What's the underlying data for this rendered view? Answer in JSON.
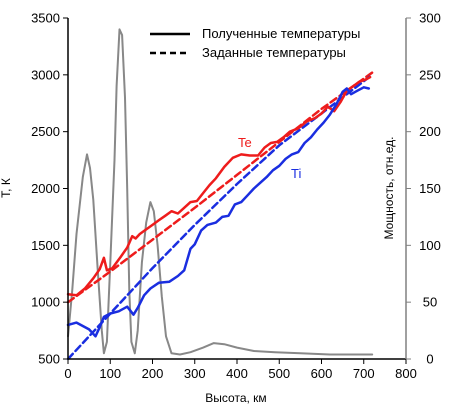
{
  "chart_data": {
    "type": "line",
    "xlabel": "Высота, км",
    "ylabel_left": "Т, К",
    "ylabel_right": "Мощность, отн.ед.",
    "xlim": [
      0,
      800
    ],
    "ylim_left": [
      500,
      3500
    ],
    "ylim_right": [
      0,
      300
    ],
    "x_ticks": [
      "0",
      "100",
      "200",
      "300",
      "400",
      "500",
      "600",
      "700",
      "800"
    ],
    "y_left_ticks": [
      "500",
      "1000",
      "1500",
      "2000",
      "2500",
      "3000",
      "3500"
    ],
    "y_right_ticks": [
      "0",
      "50",
      "100",
      "150",
      "200",
      "250",
      "300"
    ],
    "legend": {
      "position": "top-center",
      "solid_label": "Полученные температуры",
      "dashed_label": "Заданные температуры"
    },
    "colors": {
      "te": "#ee1c1c",
      "ti": "#1a2ee0",
      "power": "#888888",
      "axis": "#000000",
      "right_axis": "#808080"
    },
    "series": [
      {
        "label": "Te",
        "color": "#ee1c1c",
        "style": "solid",
        "axis": "left",
        "points": [
          [
            0,
            1070
          ],
          [
            20,
            1060
          ],
          [
            40,
            1120
          ],
          [
            60,
            1210
          ],
          [
            75,
            1290
          ],
          [
            85,
            1390
          ],
          [
            92,
            1280
          ],
          [
            105,
            1300
          ],
          [
            125,
            1400
          ],
          [
            140,
            1480
          ],
          [
            152,
            1580
          ],
          [
            160,
            1560
          ],
          [
            170,
            1600
          ],
          [
            185,
            1640
          ],
          [
            200,
            1680
          ],
          [
            215,
            1720
          ],
          [
            230,
            1760
          ],
          [
            245,
            1800
          ],
          [
            260,
            1780
          ],
          [
            275,
            1830
          ],
          [
            290,
            1880
          ],
          [
            305,
            1890
          ],
          [
            320,
            1960
          ],
          [
            335,
            2030
          ],
          [
            350,
            2090
          ],
          [
            370,
            2190
          ],
          [
            390,
            2270
          ],
          [
            410,
            2300
          ],
          [
            430,
            2290
          ],
          [
            450,
            2290
          ],
          [
            465,
            2360
          ],
          [
            480,
            2400
          ],
          [
            495,
            2410
          ],
          [
            510,
            2450
          ],
          [
            525,
            2500
          ],
          [
            545,
            2530
          ],
          [
            565,
            2590
          ],
          [
            585,
            2620
          ],
          [
            600,
            2660
          ],
          [
            615,
            2720
          ],
          [
            630,
            2680
          ],
          [
            645,
            2760
          ],
          [
            660,
            2860
          ],
          [
            675,
            2900
          ],
          [
            690,
            2940
          ],
          [
            705,
            2960
          ],
          [
            715,
            2980
          ]
        ]
      },
      {
        "label": "Ti",
        "color": "#1a2ee0",
        "style": "solid",
        "axis": "left",
        "points": [
          [
            0,
            800
          ],
          [
            20,
            820
          ],
          [
            35,
            790
          ],
          [
            50,
            760
          ],
          [
            65,
            700
          ],
          [
            75,
            780
          ],
          [
            85,
            870
          ],
          [
            100,
            900
          ],
          [
            120,
            920
          ],
          [
            140,
            960
          ],
          [
            155,
            890
          ],
          [
            165,
            950
          ],
          [
            180,
            1060
          ],
          [
            195,
            1120
          ],
          [
            215,
            1170
          ],
          [
            240,
            1180
          ],
          [
            260,
            1230
          ],
          [
            275,
            1280
          ],
          [
            290,
            1470
          ],
          [
            300,
            1510
          ],
          [
            315,
            1630
          ],
          [
            330,
            1680
          ],
          [
            350,
            1700
          ],
          [
            365,
            1750
          ],
          [
            380,
            1760
          ],
          [
            395,
            1860
          ],
          [
            410,
            1880
          ],
          [
            425,
            1940
          ],
          [
            440,
            2000
          ],
          [
            455,
            2050
          ],
          [
            470,
            2100
          ],
          [
            485,
            2160
          ],
          [
            500,
            2200
          ],
          [
            515,
            2260
          ],
          [
            530,
            2300
          ],
          [
            545,
            2320
          ],
          [
            560,
            2400
          ],
          [
            575,
            2450
          ],
          [
            590,
            2520
          ],
          [
            605,
            2580
          ],
          [
            620,
            2650
          ],
          [
            635,
            2740
          ],
          [
            650,
            2850
          ],
          [
            660,
            2880
          ],
          [
            670,
            2830
          ],
          [
            685,
            2860
          ],
          [
            700,
            2890
          ],
          [
            712,
            2880
          ]
        ]
      },
      {
        "label": "Te assigned",
        "color": "#ee1c1c",
        "style": "dashed",
        "axis": "left",
        "points": [
          [
            0,
            1000
          ],
          [
            100,
            1270
          ],
          [
            200,
            1550
          ],
          [
            300,
            1830
          ],
          [
            400,
            2120
          ],
          [
            500,
            2410
          ],
          [
            600,
            2700
          ],
          [
            720,
            3020
          ]
        ]
      },
      {
        "label": "Ti assigned",
        "color": "#1a2ee0",
        "style": "dashed",
        "axis": "left",
        "points": [
          [
            0,
            500
          ],
          [
            100,
            900
          ],
          [
            200,
            1300
          ],
          [
            300,
            1680
          ],
          [
            400,
            2040
          ],
          [
            500,
            2380
          ],
          [
            600,
            2660
          ],
          [
            720,
            3000
          ]
        ]
      },
      {
        "label": "power",
        "color": "#888888",
        "style": "solid",
        "axis": "right",
        "points": [
          [
            0,
            20
          ],
          [
            10,
            60
          ],
          [
            20,
            110
          ],
          [
            35,
            160
          ],
          [
            45,
            180
          ],
          [
            52,
            168
          ],
          [
            60,
            140
          ],
          [
            70,
            80
          ],
          [
            80,
            25
          ],
          [
            85,
            5
          ],
          [
            92,
            15
          ],
          [
            100,
            85
          ],
          [
            110,
            175
          ],
          [
            115,
            240
          ],
          [
            122,
            290
          ],
          [
            128,
            285
          ],
          [
            135,
            230
          ],
          [
            140,
            150
          ],
          [
            145,
            60
          ],
          [
            150,
            15
          ],
          [
            158,
            5
          ],
          [
            165,
            25
          ],
          [
            175,
            85
          ],
          [
            185,
            120
          ],
          [
            195,
            138
          ],
          [
            203,
            130
          ],
          [
            212,
            100
          ],
          [
            222,
            55
          ],
          [
            232,
            20
          ],
          [
            245,
            5
          ],
          [
            265,
            4
          ],
          [
            290,
            6
          ],
          [
            320,
            10
          ],
          [
            345,
            14
          ],
          [
            370,
            13
          ],
          [
            400,
            10
          ],
          [
            440,
            7
          ],
          [
            490,
            6
          ],
          [
            550,
            5
          ],
          [
            620,
            4
          ],
          [
            720,
            4
          ]
        ]
      }
    ],
    "annotations": {
      "te": "Te",
      "ti": "Ti"
    }
  }
}
